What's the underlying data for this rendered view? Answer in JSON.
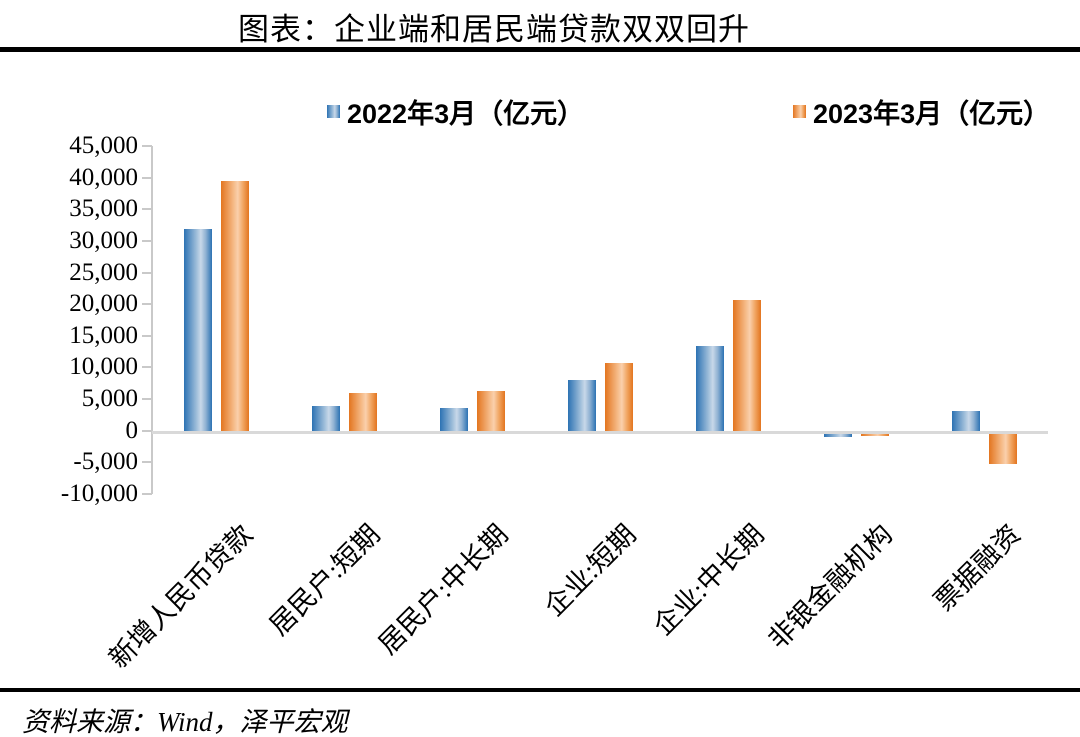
{
  "title": "图表：企业端和居民端贷款双双回升",
  "source_note": "资料来源：Wind，泽平宏观",
  "legend": {
    "items": [
      {
        "label": "2022年3月（亿元）",
        "color": "#2E75B6",
        "swatch": "blue-square-icon"
      },
      {
        "label": "2023年3月（亿元）",
        "color": "#ED7D31",
        "swatch": "orange-square-icon"
      }
    ]
  },
  "chart_data": {
    "type": "bar",
    "title": "图表：企业端和居民端贷款双双回升",
    "categories": [
      "新增人民币贷款",
      "居民户:短期",
      "居民户:中长期",
      "企业:短期",
      "企业:中长期",
      "非银金融机构",
      "票据融资"
    ],
    "series": [
      {
        "name": "2022年3月（亿元）",
        "color": "#2E75B6",
        "values": [
          32000,
          3900,
          3700,
          8100,
          13500,
          -450,
          3200
        ]
      },
      {
        "name": "2023年3月（亿元）",
        "color": "#ED7D31",
        "values": [
          39500,
          6000,
          6400,
          10800,
          20700,
          -280,
          -4700
        ]
      }
    ],
    "ylim": [
      -10000,
      45000
    ],
    "ytick_step": 5000,
    "ytick_labels": [
      "45,000",
      "40,000",
      "35,000",
      "30,000",
      "25,000",
      "20,000",
      "15,000",
      "10,000",
      "5,000",
      "0",
      "-5,000",
      "-10,000"
    ],
    "xlabel": "",
    "ylabel": "",
    "grid": "zero-baseline-only",
    "legend_position": "top",
    "bar_orientation": "vertical",
    "category_label_rotation_deg": 45
  }
}
